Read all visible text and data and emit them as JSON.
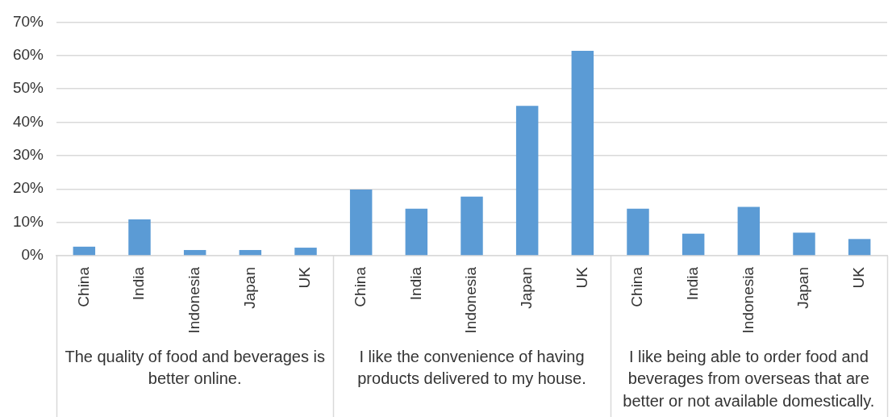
{
  "chart_data": {
    "type": "bar",
    "categories": [
      "China",
      "India",
      "Indonesia",
      "Japan",
      "UK",
      "China",
      "India",
      "Indonesia",
      "Japan",
      "UK",
      "China",
      "India",
      "Indonesia",
      "Japan",
      "UK"
    ],
    "values": [
      2.7,
      10.9,
      1.7,
      1.7,
      2.4,
      19.8,
      14.1,
      17.7,
      44.9,
      61.4,
      14.1,
      6.6,
      14.6,
      6.9,
      5.0
    ],
    "color": "#5b9bd5",
    "ylim": [
      0,
      70
    ],
    "yticks": [
      {
        "value": 0,
        "label": "0%"
      },
      {
        "value": 10,
        "label": "10%"
      },
      {
        "value": 20,
        "label": "20%"
      },
      {
        "value": 30,
        "label": "30%"
      },
      {
        "value": 40,
        "label": "40%"
      },
      {
        "value": 50,
        "label": "50%"
      },
      {
        "value": 60,
        "label": "60%"
      },
      {
        "value": 70,
        "label": "70%"
      }
    ],
    "grid": "y",
    "annotations": [
      "The quality of food and beverages is better online.",
      "I like the convenience of having products delivered to my house.",
      "I like being able to order food and beverages from overseas that are better or not available domestically."
    ]
  }
}
